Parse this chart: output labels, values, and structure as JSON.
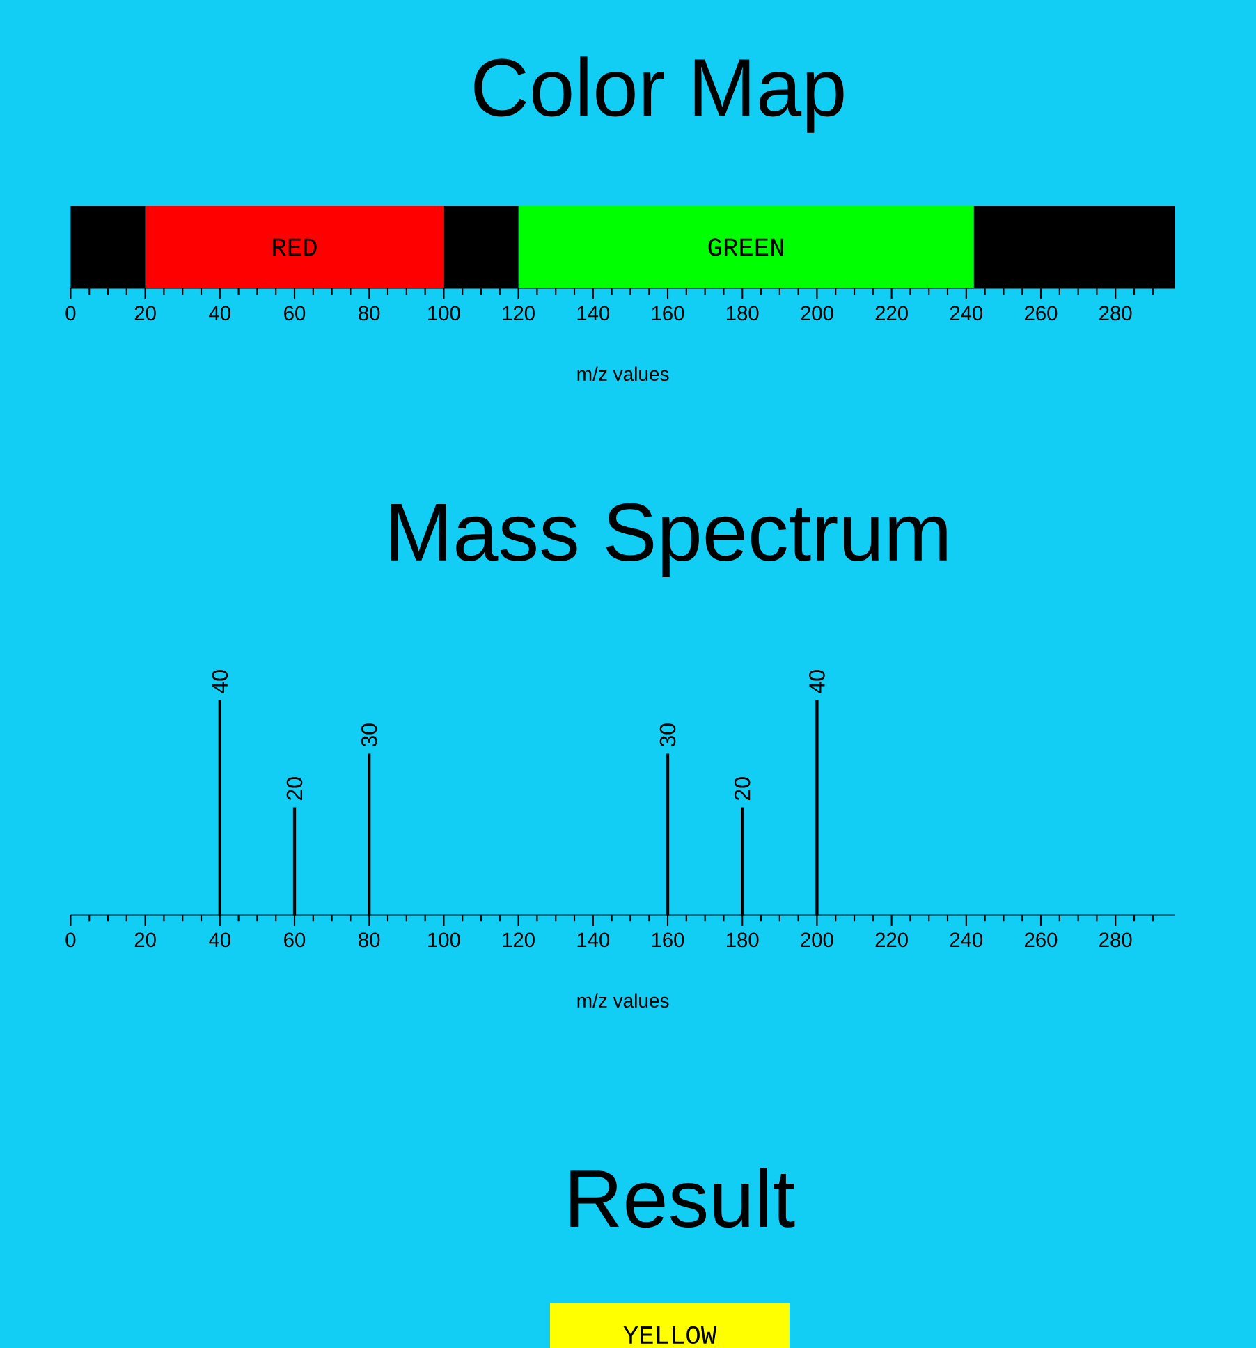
{
  "chart_data": [
    {
      "type": "bar",
      "title": "Color Map",
      "orientation": "horizontal",
      "stacked": true,
      "xlabel": "m/z values",
      "categories": [
        null
      ],
      "xlim": [
        0,
        296
      ],
      "xticks": [
        0,
        {
          "value": 5,
          "label": null
        },
        {
          "value": 10,
          "label": null
        },
        {
          "value": 15,
          "label": null
        },
        20,
        {
          "value": 25,
          "label": null
        },
        {
          "value": 30,
          "label": null
        },
        {
          "value": 35,
          "label": null
        },
        40,
        {
          "value": 45,
          "label": null
        },
        {
          "value": 50,
          "label": null
        },
        {
          "value": 55,
          "label": null
        },
        60,
        {
          "value": 65,
          "label": null
        },
        {
          "value": 70,
          "label": null
        },
        {
          "value": 75,
          "label": null
        },
        80,
        {
          "value": 85,
          "label": null
        },
        {
          "value": 90,
          "label": null
        },
        {
          "value": 95,
          "label": null
        },
        100,
        {
          "value": 105,
          "label": null
        },
        {
          "value": 110,
          "label": null
        },
        {
          "value": 115,
          "label": null
        },
        120,
        {
          "value": 125,
          "label": null
        },
        {
          "value": 130,
          "label": null
        },
        {
          "value": 135,
          "label": null
        },
        140,
        {
          "value": 145,
          "label": null
        },
        {
          "value": 150,
          "label": null
        },
        {
          "value": 155,
          "label": null
        },
        160,
        {
          "value": 165,
          "label": null
        },
        {
          "value": 170,
          "label": null
        },
        {
          "value": 175,
          "label": null
        },
        180,
        {
          "value": 185,
          "label": null
        },
        {
          "value": 190,
          "label": null
        },
        {
          "value": 195,
          "label": null
        },
        200,
        {
          "value": 205,
          "label": null
        },
        {
          "value": 210,
          "label": null
        },
        {
          "value": 215,
          "label": null
        },
        220,
        {
          "value": 225,
          "label": null
        },
        {
          "value": 230,
          "label": null
        },
        {
          "value": 235,
          "label": null
        },
        240,
        {
          "value": 245,
          "label": null
        },
        {
          "value": 250,
          "label": null
        },
        {
          "value": 255,
          "label": null
        },
        260,
        {
          "value": 265,
          "label": null
        },
        {
          "value": 270,
          "label": null
        },
        {
          "value": 275,
          "label": null
        },
        280,
        {
          "value": 285,
          "label": null
        },
        {
          "value": 290,
          "label": null
        }
      ],
      "series": [
        {
          "color": "#000000",
          "values": [
            20
          ]
        },
        {
          "name": "RED",
          "color": "#ff0000",
          "values": [
            80
          ]
        },
        {
          "color": "#000000",
          "values": [
            20
          ]
        },
        {
          "name": "GREEN",
          "color": "#00ff00",
          "values": [
            122
          ]
        },
        {
          "color": "#000000",
          "values": [
            54
          ]
        }
      ]
    },
    {
      "type": "bar",
      "title": "Mass Spectrum",
      "xlabel": "m/z values",
      "x": [
        40,
        60,
        80,
        160,
        180,
        200
      ],
      "values": [
        40,
        20,
        30,
        30,
        20,
        40
      ],
      "color": "#000000",
      "data_labels": true,
      "xlim": [
        0,
        296
      ],
      "xticks": [
        0,
        {
          "value": 5,
          "label": null
        },
        {
          "value": 10,
          "label": null
        },
        {
          "value": 15,
          "label": null
        },
        20,
        {
          "value": 25,
          "label": null
        },
        {
          "value": 30,
          "label": null
        },
        {
          "value": 35,
          "label": null
        },
        40,
        {
          "value": 45,
          "label": null
        },
        {
          "value": 50,
          "label": null
        },
        {
          "value": 55,
          "label": null
        },
        60,
        {
          "value": 65,
          "label": null
        },
        {
          "value": 70,
          "label": null
        },
        {
          "value": 75,
          "label": null
        },
        80,
        {
          "value": 85,
          "label": null
        },
        {
          "value": 90,
          "label": null
        },
        {
          "value": 95,
          "label": null
        },
        100,
        {
          "value": 105,
          "label": null
        },
        {
          "value": 110,
          "label": null
        },
        {
          "value": 115,
          "label": null
        },
        120,
        {
          "value": 125,
          "label": null
        },
        {
          "value": 130,
          "label": null
        },
        {
          "value": 135,
          "label": null
        },
        140,
        {
          "value": 145,
          "label": null
        },
        {
          "value": 150,
          "label": null
        },
        {
          "value": 155,
          "label": null
        },
        160,
        {
          "value": 165,
          "label": null
        },
        {
          "value": 170,
          "label": null
        },
        {
          "value": 175,
          "label": null
        },
        180,
        {
          "value": 185,
          "label": null
        },
        {
          "value": 190,
          "label": null
        },
        {
          "value": 195,
          "label": null
        },
        200,
        {
          "value": 205,
          "label": null
        },
        {
          "value": 210,
          "label": null
        },
        {
          "value": 215,
          "label": null
        },
        220,
        {
          "value": 225,
          "label": null
        },
        {
          "value": 230,
          "label": null
        },
        {
          "value": 235,
          "label": null
        },
        240,
        {
          "value": 245,
          "label": null
        },
        {
          "value": 250,
          "label": null
        },
        {
          "value": 255,
          "label": null
        },
        260,
        {
          "value": 265,
          "label": null
        },
        {
          "value": 270,
          "label": null
        },
        {
          "value": 275,
          "label": null
        },
        280,
        {
          "value": 285,
          "label": null
        },
        {
          "value": 290,
          "label": null
        }
      ]
    },
    {
      "type": "other",
      "title": "Result",
      "annotations": [
        "YELLOW"
      ],
      "color": "#ffff00"
    }
  ]
}
